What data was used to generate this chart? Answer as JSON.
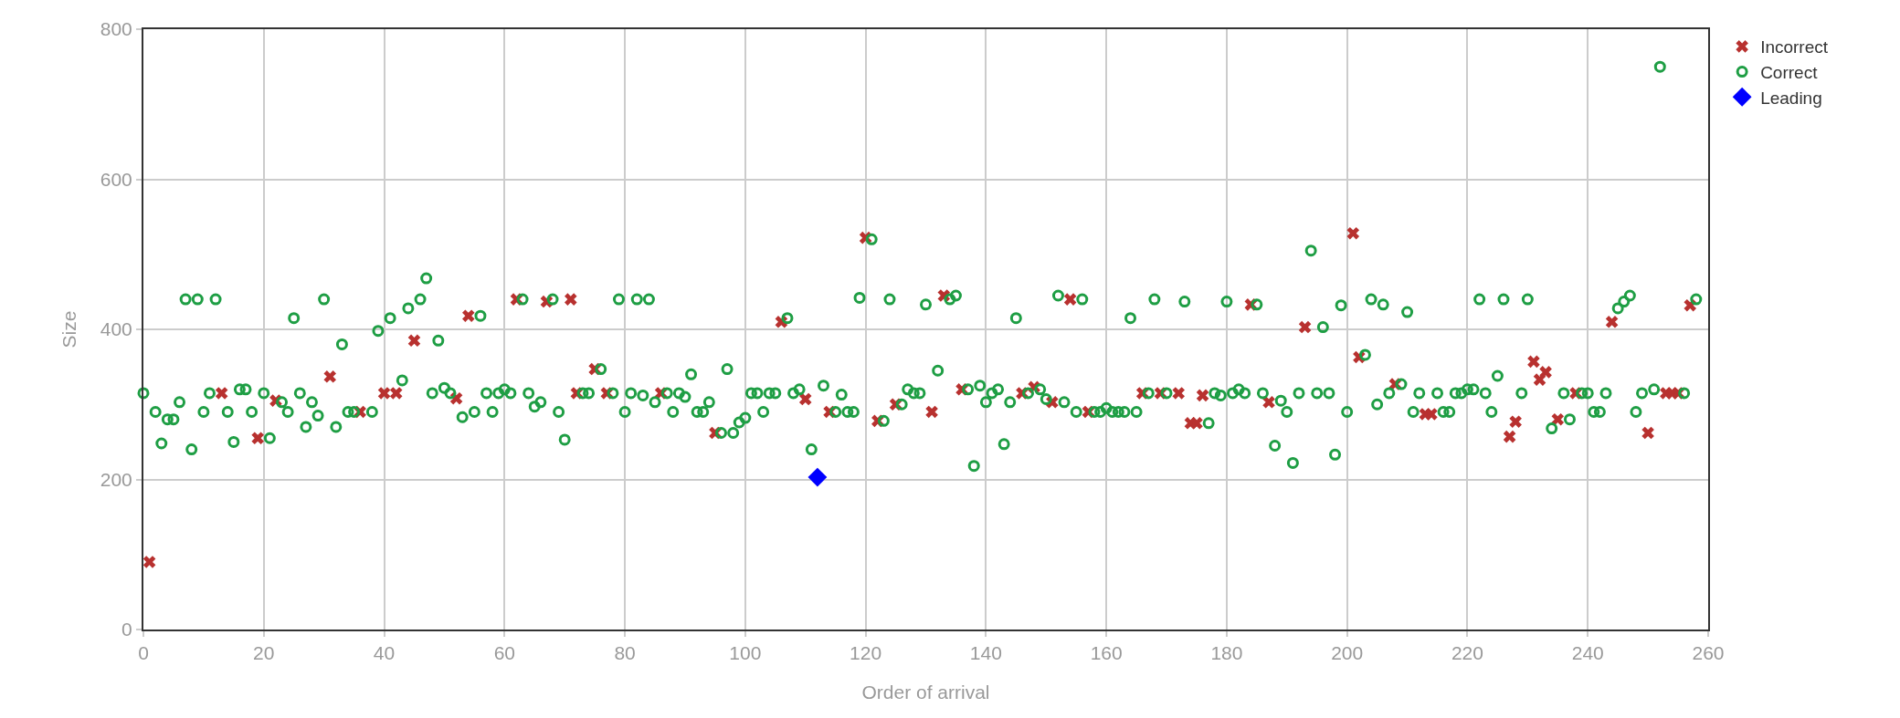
{
  "chart_data": {
    "type": "scatter",
    "xlabel": "Order of arrival",
    "ylabel": "Size",
    "xlim": [
      0,
      260
    ],
    "xticks": [
      0,
      20,
      40,
      60,
      80,
      100,
      120,
      140,
      160,
      180,
      200,
      220,
      240,
      260
    ],
    "ylim": [
      0,
      800
    ],
    "yticks": [
      0,
      200,
      400,
      600,
      800
    ],
    "grid": true,
    "legend": "top right",
    "series": [
      {
        "name": "Incorrect",
        "color": "#b8312f",
        "marker": "cross",
        "x": [
          1,
          13,
          19,
          22,
          31,
          36,
          40,
          42,
          45,
          52,
          54,
          62,
          67,
          71,
          72,
          75,
          77,
          86,
          95,
          106,
          110,
          114,
          120,
          122,
          125,
          131,
          133,
          136,
          146,
          148,
          151,
          154,
          157,
          166,
          169,
          172,
          174,
          175,
          176,
          184,
          187,
          193,
          201,
          202,
          208,
          213,
          214,
          227,
          228,
          231,
          232,
          233,
          235,
          238,
          244,
          250,
          253,
          254,
          255,
          257
        ],
        "values": [
          90,
          315,
          255,
          305,
          337,
          290,
          315,
          315,
          385,
          308,
          418,
          440,
          437,
          440,
          315,
          347,
          315,
          315,
          262,
          410,
          307,
          290,
          522,
          278,
          300,
          290,
          445,
          320,
          315,
          323,
          303,
          440,
          290,
          315,
          315,
          315,
          275,
          275,
          312,
          433,
          303,
          403,
          528,
          363,
          327,
          287,
          287,
          257,
          277,
          357,
          333,
          343,
          280,
          315,
          410,
          262,
          315,
          315,
          315,
          432
        ]
      },
      {
        "name": "Correct",
        "color": "#1e9e44",
        "marker": "circle",
        "x": [
          0,
          2,
          3,
          4,
          5,
          6,
          7,
          8,
          9,
          10,
          11,
          12,
          14,
          15,
          16,
          17,
          18,
          20,
          21,
          23,
          24,
          25,
          26,
          27,
          28,
          29,
          30,
          32,
          33,
          34,
          35,
          38,
          39,
          41,
          43,
          44,
          46,
          47,
          48,
          49,
          50,
          51,
          53,
          55,
          56,
          57,
          58,
          59,
          60,
          61,
          63,
          64,
          65,
          66,
          68,
          69,
          70,
          73,
          74,
          76,
          78,
          79,
          80,
          81,
          82,
          83,
          84,
          85,
          87,
          88,
          89,
          90,
          91,
          92,
          93,
          94,
          96,
          97,
          98,
          99,
          100,
          101,
          102,
          103,
          104,
          105,
          107,
          108,
          109,
          111,
          113,
          115,
          116,
          117,
          118,
          119,
          121,
          123,
          124,
          126,
          127,
          128,
          129,
          130,
          132,
          134,
          135,
          137,
          138,
          139,
          140,
          141,
          142,
          143,
          144,
          145,
          147,
          149,
          150,
          152,
          153,
          155,
          156,
          158,
          159,
          160,
          161,
          162,
          163,
          164,
          165,
          167,
          168,
          170,
          173,
          177,
          178,
          179,
          180,
          181,
          182,
          183,
          185,
          186,
          188,
          189,
          190,
          191,
          192,
          194,
          195,
          196,
          197,
          198,
          199,
          200,
          203,
          204,
          205,
          206,
          207,
          209,
          210,
          211,
          212,
          215,
          216,
          217,
          218,
          219,
          220,
          221,
          222,
          223,
          224,
          225,
          226,
          229,
          230,
          234,
          236,
          237,
          239,
          240,
          241,
          242,
          243,
          245,
          246,
          247,
          248,
          249,
          251,
          252,
          256,
          258
        ],
        "values": [
          315,
          290,
          248,
          280,
          280,
          303,
          440,
          240,
          440,
          290,
          315,
          440,
          290,
          250,
          320,
          320,
          290,
          315,
          255,
          303,
          290,
          415,
          315,
          270,
          303,
          285,
          440,
          270,
          380,
          290,
          290,
          290,
          398,
          415,
          332,
          428,
          440,
          468,
          315,
          385,
          322,
          315,
          283,
          290,
          418,
          315,
          290,
          315,
          320,
          315,
          440,
          315,
          297,
          303,
          440,
          290,
          253,
          315,
          315,
          347,
          315,
          440,
          290,
          315,
          440,
          312,
          440,
          303,
          315,
          290,
          315,
          310,
          340,
          290,
          290,
          303,
          262,
          347,
          262,
          276,
          282,
          315,
          315,
          290,
          315,
          315,
          415,
          315,
          320,
          240,
          325,
          290,
          313,
          290,
          290,
          442,
          520,
          278,
          440,
          300,
          320,
          315,
          315,
          433,
          345,
          440,
          445,
          320,
          218,
          325,
          303,
          315,
          320,
          247,
          303,
          415,
          315,
          320,
          307,
          445,
          303,
          290,
          440,
          290,
          290,
          295,
          290,
          290,
          290,
          415,
          290,
          315,
          440,
          315,
          437,
          275,
          315,
          312,
          437,
          315,
          320,
          315,
          433,
          315,
          245,
          305,
          290,
          222,
          315,
          505,
          315,
          403,
          315,
          233,
          432,
          290,
          366,
          440,
          300,
          433,
          315,
          327,
          423,
          290,
          315,
          315,
          290,
          290,
          315,
          315,
          320,
          320,
          440,
          315,
          290,
          338,
          440,
          315,
          440,
          268,
          315,
          280,
          315,
          315,
          290,
          290,
          315,
          428,
          437,
          445,
          290,
          315,
          320,
          750,
          315,
          440
        ]
      },
      {
        "name": "Leading",
        "color": "#0000ff",
        "marker": "diamond",
        "x": [
          112
        ],
        "values": [
          203
        ]
      }
    ]
  }
}
